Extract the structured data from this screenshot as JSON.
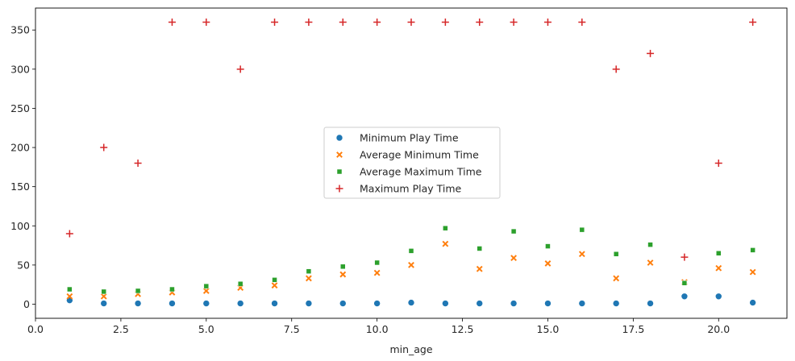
{
  "chart_data": {
    "type": "scatter",
    "xlabel": "min_age",
    "ylabel": "",
    "xlim": [
      0,
      22
    ],
    "ylim": [
      -18,
      378
    ],
    "grid": false,
    "legend_position": "center",
    "x_ticks": [
      {
        "value": 0,
        "label": "0.0"
      },
      {
        "value": 2.5,
        "label": "2.5"
      },
      {
        "value": 5,
        "label": "5.0"
      },
      {
        "value": 7.5,
        "label": "7.5"
      },
      {
        "value": 10,
        "label": "10.0"
      },
      {
        "value": 12.5,
        "label": "12.5"
      },
      {
        "value": 15,
        "label": "15.0"
      },
      {
        "value": 17.5,
        "label": "17.5"
      },
      {
        "value": 20,
        "label": "20.0"
      }
    ],
    "y_ticks": [
      {
        "value": 0,
        "label": "0"
      },
      {
        "value": 50,
        "label": "50"
      },
      {
        "value": 100,
        "label": "100"
      },
      {
        "value": 150,
        "label": "150"
      },
      {
        "value": 200,
        "label": "200"
      },
      {
        "value": 250,
        "label": "250"
      },
      {
        "value": 300,
        "label": "300"
      },
      {
        "value": 350,
        "label": "350"
      }
    ],
    "x": [
      1,
      2,
      3,
      4,
      5,
      6,
      7,
      8,
      9,
      10,
      11,
      12,
      13,
      14,
      15,
      16,
      17,
      18,
      19,
      20,
      21
    ],
    "series": [
      {
        "name": "Minimum Play Time",
        "marker": "circle",
        "color": "#1f77b4",
        "values": [
          5,
          1,
          1,
          1,
          1,
          1,
          1,
          1,
          1,
          1,
          2,
          1,
          1,
          1,
          1,
          1,
          1,
          1,
          10,
          10,
          2
        ]
      },
      {
        "name": "Average Minimum Time",
        "marker": "x",
        "color": "#ff7f0e",
        "values": [
          10,
          10,
          13,
          15,
          17,
          21,
          24,
          33,
          38,
          40,
          50,
          77,
          45,
          59,
          52,
          64,
          33,
          53,
          28,
          46,
          41
        ]
      },
      {
        "name": "Average Maximum Time",
        "marker": "square",
        "color": "#2ca02c",
        "values": [
          19,
          16,
          17,
          19,
          23,
          26,
          31,
          42,
          48,
          53,
          68,
          97,
          71,
          93,
          74,
          95,
          64,
          76,
          27,
          65,
          69
        ]
      },
      {
        "name": "Maximum Play Time",
        "marker": "plus",
        "color": "#d62728",
        "values": [
          90,
          200,
          180,
          360,
          360,
          300,
          360,
          360,
          360,
          360,
          360,
          360,
          360,
          360,
          360,
          360,
          300,
          320,
          60,
          180,
          360
        ]
      }
    ]
  }
}
